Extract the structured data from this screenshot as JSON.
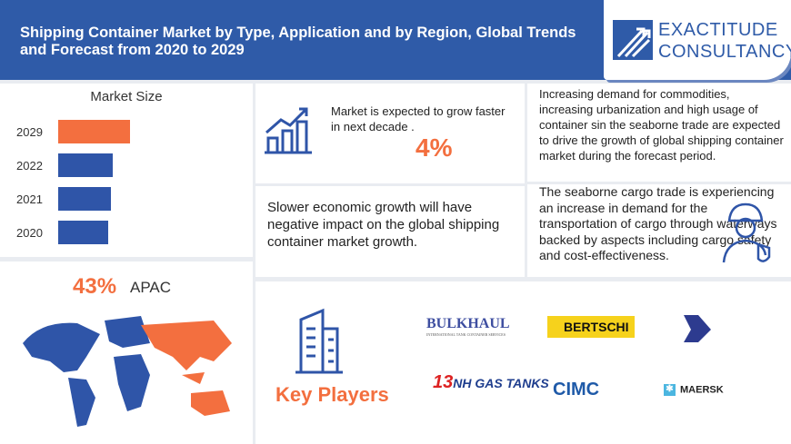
{
  "header": {
    "title": "Shipping Container Market by Type, Application and by Region, Global Trends and Forecast from 2020 to 2029",
    "logo": {
      "line1": "EXACTITUDE",
      "line2": "CONSULTANCY"
    }
  },
  "market_size": {
    "title": "Market Size",
    "bars": [
      {
        "label": "2029",
        "value": 79,
        "color": "#f36f3f"
      },
      {
        "label": "2022",
        "value": 60,
        "color": "#2f55a8"
      },
      {
        "label": "2021",
        "value": 58,
        "color": "#2f55a8"
      },
      {
        "label": "2020",
        "value": 55,
        "color": "#2f55a8"
      }
    ]
  },
  "region": {
    "percent": "43%",
    "name": "APAC"
  },
  "growth": {
    "text": "Market is expected to grow faster in next decade .",
    "cagr": "4%"
  },
  "drivers": "Increasing demand for commodities, increasing urbanization and high usage of container sin the seaborne trade are expected to drive the growth of global shipping container market during the forecast period.",
  "restraint": "Slower economic growth will have negative impact on the global shipping container market growth.",
  "opportunity": "The seaborne cargo trade is experiencing an increase in demand for the transportation of cargo through waterways backed by aspects including cargo safety and cost-effectiveness.",
  "key_players": {
    "title": "Key Players",
    "logos": [
      "BULKHAUL",
      "BERTSCHI",
      "NH GAS TANKS",
      "CIMC",
      "MAERSK"
    ],
    "bulkhaul_sub": "INTERNATIONAL TANK CONTAINER SERVICES"
  }
}
